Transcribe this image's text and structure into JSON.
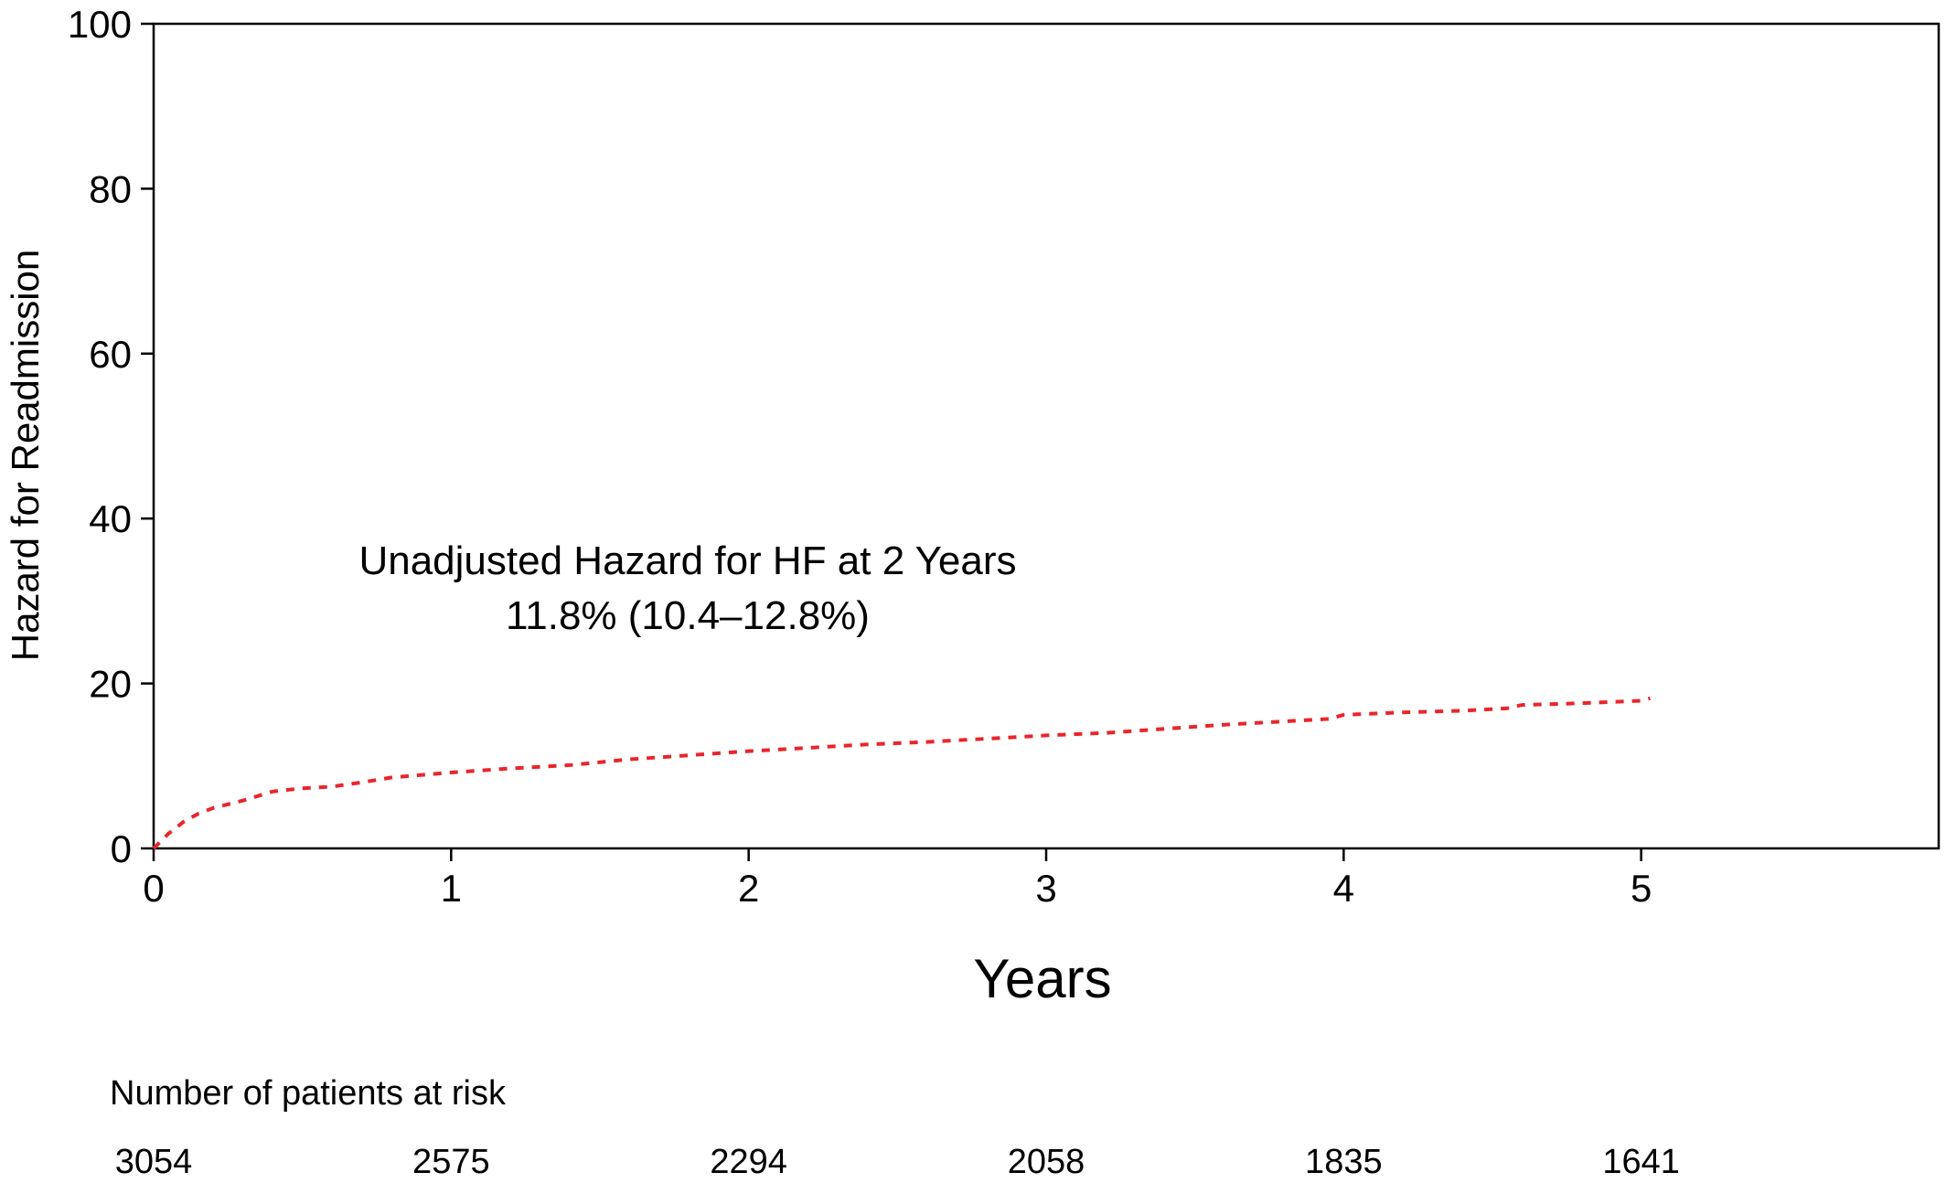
{
  "chart_data": {
    "type": "line",
    "title": "",
    "xlabel": "Years",
    "ylabel": "Hazard for Readmission",
    "xlim": [
      0,
      6
    ],
    "ylim": [
      0,
      100
    ],
    "xticks": [
      0,
      1,
      2,
      3,
      4,
      5
    ],
    "yticks": [
      0,
      20,
      40,
      60,
      80,
      100
    ],
    "grid": false,
    "series": [
      {
        "name": "",
        "color": "#e8262b",
        "style": "dotted",
        "x": [
          0,
          0.05,
          0.1,
          0.15,
          0.2,
          0.3,
          0.4,
          0.5,
          0.6,
          0.7,
          0.8,
          1.0,
          1.2,
          1.4,
          1.6,
          1.8,
          2.0,
          2.2,
          2.4,
          2.6,
          2.8,
          3.0,
          3.2,
          3.4,
          3.6,
          3.8,
          3.95,
          4.0,
          4.2,
          4.4,
          4.55,
          4.6,
          4.8,
          5.0,
          5.03
        ],
        "y": [
          0,
          1.8,
          3.2,
          4.2,
          4.9,
          5.8,
          6.9,
          7.3,
          7.5,
          8.0,
          8.6,
          9.2,
          9.7,
          10.1,
          10.8,
          11.3,
          11.8,
          12.2,
          12.6,
          12.9,
          13.3,
          13.7,
          14.0,
          14.5,
          15.0,
          15.4,
          15.7,
          16.2,
          16.5,
          16.7,
          17.0,
          17.4,
          17.6,
          17.9,
          18.2
        ]
      }
    ],
    "annotation": {
      "line1": "Unadjusted Hazard for HF at 2 Years",
      "line2": "11.8% (10.4–12.8%)"
    }
  },
  "risk_table": {
    "title": "Number of patients at risk",
    "years": [
      0,
      1,
      2,
      3,
      4,
      5
    ],
    "values": [
      "3054",
      "2575",
      "2294",
      "2058",
      "1835",
      "1641"
    ]
  }
}
